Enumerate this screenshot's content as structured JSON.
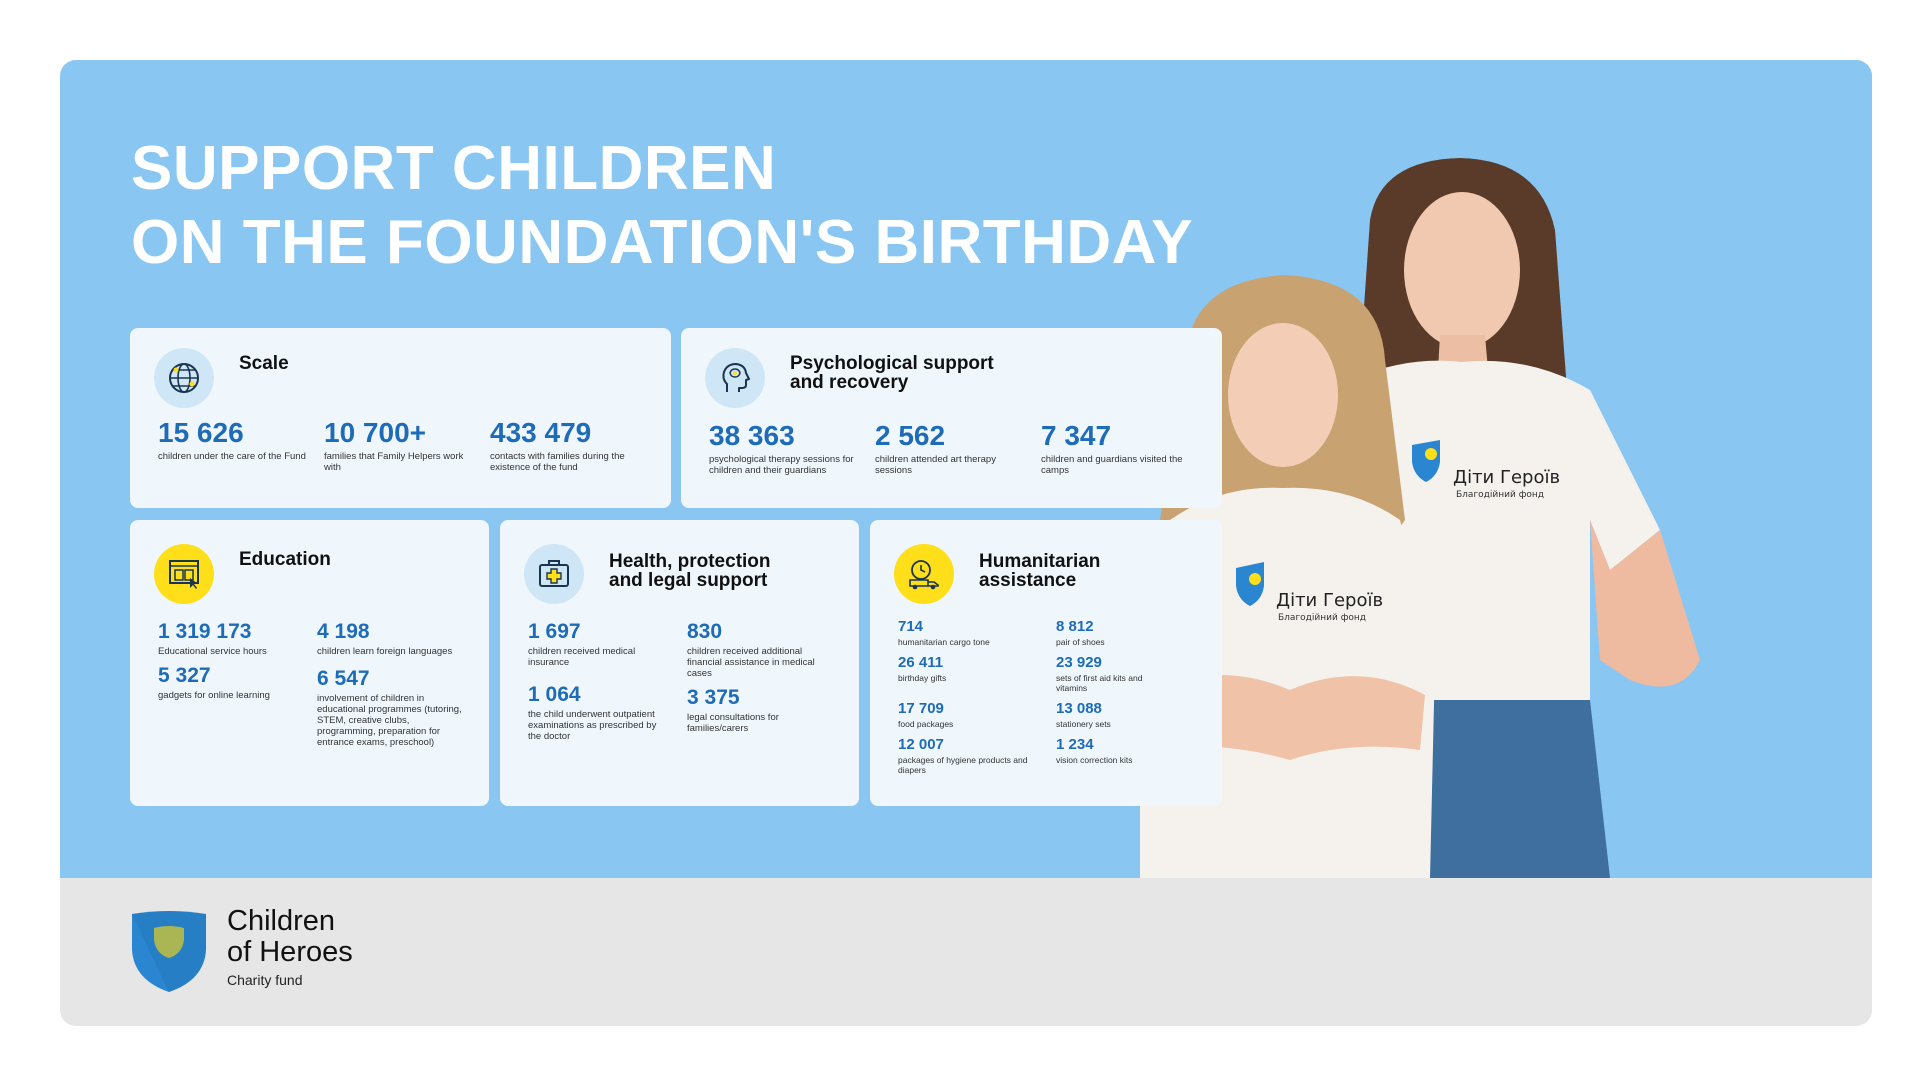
{
  "title": {
    "line1": "SUPPORT CHILDREN",
    "line2": "ON THE FOUNDATION'S BIRTHDAY"
  },
  "cards": {
    "scale": {
      "title": "Scale",
      "stats": [
        {
          "value": "15 626",
          "label": "children under the care of the Fund"
        },
        {
          "value": "10 700+",
          "label": "families that Family Helpers work with"
        },
        {
          "value": "433 479",
          "label": "contacts with families during the existence of the fund"
        }
      ]
    },
    "psych": {
      "title_line1": "Psychological support",
      "title_line2": "and recovery",
      "stats": [
        {
          "value": "38 363",
          "label": "psychological therapy sessions for children and their guardians"
        },
        {
          "value": "2 562",
          "label": "children attended art therapy sessions"
        },
        {
          "value": "7 347",
          "label": "children and guardians visited the camps"
        }
      ]
    },
    "education": {
      "title": "Education",
      "stats": [
        {
          "value": "1 319 173",
          "label": "Educational service hours"
        },
        {
          "value": "4 198",
          "label": "children learn foreign languages"
        },
        {
          "value": "5 327",
          "label": "gadgets for online learning"
        },
        {
          "value": "6 547",
          "label": "involvement of children in educational programmes (tutoring, STEM, creative clubs, programming, preparation for entrance exams, preschool)"
        }
      ]
    },
    "health": {
      "title_line1": "Health, protection",
      "title_line2": "and legal support",
      "stats": [
        {
          "value": "1 697",
          "label": "children received medical insurance"
        },
        {
          "value": "830",
          "label": "children received additional financial assistance in medical cases"
        },
        {
          "value": "1 064",
          "label": "the child underwent outpatient examinations as prescribed by the doctor"
        },
        {
          "value": "3 375",
          "label": "legal consultations for families/carers"
        }
      ]
    },
    "humanitarian": {
      "title_line1": "Humanitarian",
      "title_line2": "assistance",
      "stats": [
        {
          "value": "714",
          "label": "humanitarian cargo tone"
        },
        {
          "value": "8 812",
          "label": "pair of shoes"
        },
        {
          "value": "26 411",
          "label": "birthday gifts"
        },
        {
          "value": "23 929",
          "label": "sets of first aid kits and vitamins"
        },
        {
          "value": "17 709",
          "label": "food packages"
        },
        {
          "value": "13 088",
          "label": "stationery sets"
        },
        {
          "value": "12 007",
          "label": "packages of hygiene products and diapers"
        },
        {
          "value": "1 234",
          "label": "vision correction kits"
        }
      ]
    }
  },
  "shirt_logo": {
    "name": "Діти Героїв",
    "sub": "Благодійний фонд"
  },
  "footer": {
    "line1": "Children",
    "line2": "of Heroes",
    "line3": "Charity fund"
  },
  "colors": {
    "hero_bg": "#89c6f2",
    "card_bg": "#eff7fd",
    "accent_blue": "#1e6bb8",
    "yellow": "#ffde1a",
    "shield_blue": "#2a86d0",
    "footer_bg": "#e6e6e6"
  },
  "icons": {
    "scale": "globe-icon",
    "psych": "head-brain-icon",
    "education": "laptop-book-icon",
    "health": "first-aid-kit-icon",
    "humanitarian": "delivery-truck-icon",
    "logo": "shield-logo-icon"
  }
}
